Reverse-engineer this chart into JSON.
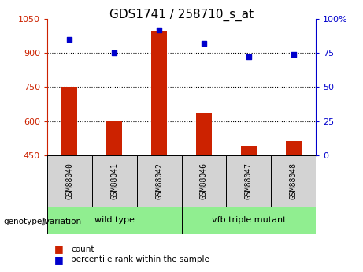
{
  "title": "GDS1741 / 258710_s_at",
  "samples": [
    "GSM88040",
    "GSM88041",
    "GSM88042",
    "GSM88046",
    "GSM88047",
    "GSM88048"
  ],
  "counts": [
    750,
    600,
    1000,
    635,
    490,
    510
  ],
  "percentiles": [
    85,
    75,
    92,
    82,
    72,
    74
  ],
  "ymin": 450,
  "ymax": 1050,
  "y2min": 0,
  "y2max": 100,
  "yticks": [
    450,
    600,
    750,
    900,
    1050
  ],
  "y2ticks": [
    0,
    25,
    50,
    75,
    100
  ],
  "bar_color": "#cc2200",
  "dot_color": "#0000cc",
  "group1_label": "wild type",
  "group2_label": "vfb triple mutant",
  "group_color": "#90ee90",
  "sample_box_color": "#d3d3d3",
  "legend_count_label": "count",
  "legend_pct_label": "percentile rank within the sample",
  "genotype_label": "genotype/variation",
  "bar_width": 0.35,
  "title_fontsize": 11,
  "axis_color_left": "#cc2200",
  "axis_color_right": "#0000cc",
  "gridline_values": [
    600,
    750,
    900
  ],
  "fig_width": 4.61,
  "fig_height": 3.45
}
